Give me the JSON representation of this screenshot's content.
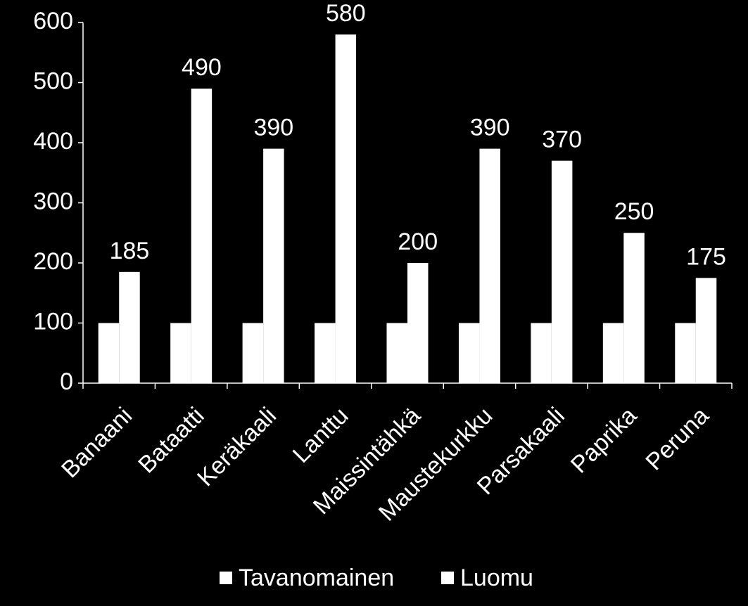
{
  "chart_data": {
    "type": "bar",
    "categories": [
      "Banaani",
      "Bataatti",
      "Keräkaali",
      "Lanttu",
      "Maissintähkä",
      "Maustekurkku",
      "Parsakaali",
      "Paprika",
      "Peruna"
    ],
    "series": [
      {
        "name": "Tavanomainen",
        "color": "#ffffff",
        "values": [
          100,
          100,
          100,
          100,
          100,
          100,
          100,
          100,
          100
        ],
        "data_labels": false
      },
      {
        "name": "Luomu",
        "color": "#ffffff",
        "values": [
          185,
          490,
          390,
          580,
          200,
          390,
          370,
          250,
          175
        ],
        "data_labels": true
      }
    ],
    "ylim": [
      0,
      600
    ],
    "yticks": [
      0,
      100,
      200,
      300,
      400,
      500,
      600
    ],
    "grid": false,
    "legend": "bottom"
  }
}
